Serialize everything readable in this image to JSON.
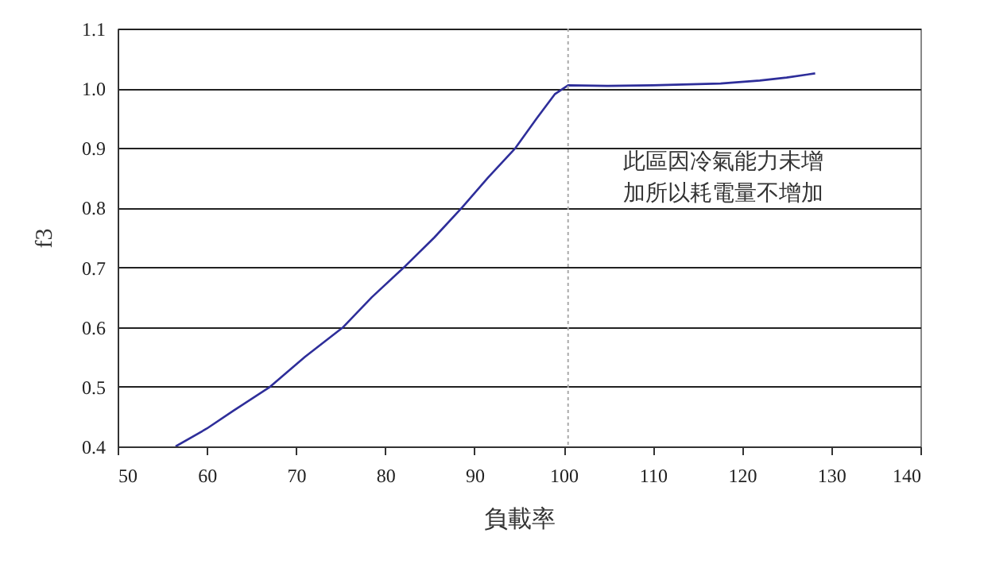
{
  "chart_data": {
    "type": "line",
    "xlabel": "負載率",
    "ylabel": "f3",
    "x": [
      56.5,
      60,
      63,
      67.1,
      71,
      75.3,
      78.5,
      82.1,
      85.5,
      88.6,
      91.5,
      94.6,
      97,
      99,
      100.5,
      105,
      110,
      117.6,
      122,
      125,
      128.2
    ],
    "series": [
      {
        "color": "#2e2e9a",
        "values": [
          0.4,
          0.43,
          0.46,
          0.5,
          0.55,
          0.6,
          0.65,
          0.7,
          0.75,
          0.8,
          0.85,
          0.9,
          0.95,
          0.99,
          1.005,
          1.004,
          1.005,
          1.008,
          1.013,
          1.018,
          1.025
        ]
      }
    ],
    "xlim": [
      50,
      140
    ],
    "xticks": [
      50,
      60,
      70,
      80,
      90,
      100,
      110,
      120,
      130,
      140
    ],
    "ylim": [
      0.4,
      1.1
    ],
    "yticks": [
      0.4,
      0.5,
      0.6,
      0.7,
      0.8,
      0.9,
      {
        "value": 1,
        "label": "1.0"
      },
      1.1
    ],
    "grid": "y",
    "ref_lines": [
      {
        "axis": "x",
        "value": 100.5,
        "color": "#aaaaaa",
        "line_style": "dotted"
      }
    ],
    "annotations": [
      "此區因冷氣能力未增",
      "加所以耗電量不增加"
    ]
  }
}
